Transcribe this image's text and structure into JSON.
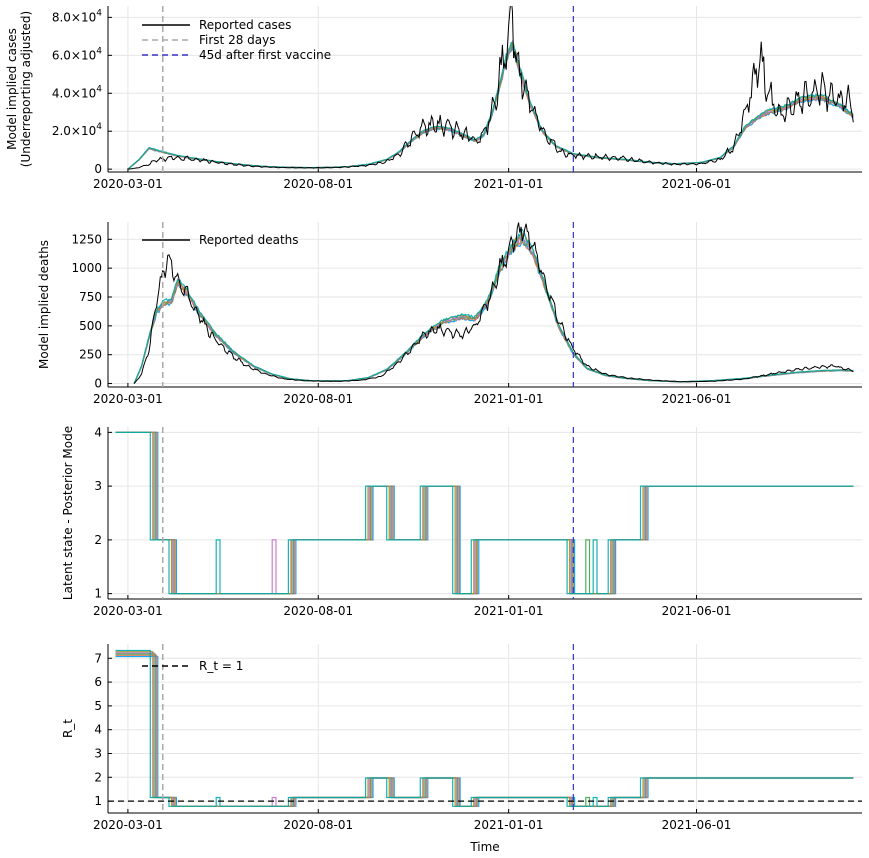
{
  "chart_data": [
    {
      "type": "line",
      "ylabel_lines": [
        "Model implied cases",
        "(Underreporting adjusted)"
      ],
      "xlabel": "",
      "x_ticks": [
        "2020-03-01",
        "2020-08-01",
        "2021-01-01",
        "2021-06-01"
      ],
      "xlim": [
        "2020-02-14",
        "2021-10-12"
      ],
      "ylim": [
        -1500,
        86000
      ],
      "y_ticks": [
        {
          "value": 0,
          "mant": "0",
          "exp": ""
        },
        {
          "value": 20000,
          "mant": "2.0×10",
          "exp": "4"
        },
        {
          "value": 40000,
          "mant": "4.0×10",
          "exp": "4"
        },
        {
          "value": 60000,
          "mant": "6.0×10",
          "exp": "4"
        },
        {
          "value": 80000,
          "mant": "8.0×10",
          "exp": "4"
        }
      ],
      "grid": true,
      "legend_placement": "top-left",
      "legend": [
        "Reported cases",
        "First 28 days",
        "45d after first vaccine"
      ],
      "first_28_days": "2020-03-29",
      "vaccine_line": "2021-02-22",
      "reported": [
        [
          "2020-03-01",
          0
        ],
        [
          "2020-03-08",
          600
        ],
        [
          "2020-03-15",
          1800
        ],
        [
          "2020-03-22",
          4000
        ],
        [
          "2020-03-29",
          5500
        ],
        [
          "2020-04-10",
          6000
        ],
        [
          "2020-04-25",
          5000
        ],
        [
          "2020-05-10",
          3800
        ],
        [
          "2020-05-25",
          2500
        ],
        [
          "2020-06-10",
          1500
        ],
        [
          "2020-06-25",
          1000
        ],
        [
          "2020-07-10",
          800
        ],
        [
          "2020-07-25",
          700
        ],
        [
          "2020-08-10",
          800
        ],
        [
          "2020-08-25",
          1200
        ],
        [
          "2020-09-10",
          2000
        ],
        [
          "2020-09-25",
          4000
        ],
        [
          "2020-10-05",
          8000
        ],
        [
          "2020-10-15",
          16000
        ],
        [
          "2020-10-25",
          22000
        ],
        [
          "2020-11-05",
          24000
        ],
        [
          "2020-11-15",
          22000
        ],
        [
          "2020-11-25",
          20000
        ],
        [
          "2020-12-05",
          15000
        ],
        [
          "2020-12-12",
          18000
        ],
        [
          "2020-12-18",
          30000
        ],
        [
          "2020-12-24",
          45000
        ],
        [
          "2020-12-30",
          68000
        ],
        [
          "2021-01-04",
          82000
        ],
        [
          "2021-01-08",
          55000
        ],
        [
          "2021-01-14",
          42000
        ],
        [
          "2021-01-22",
          28000
        ],
        [
          "2021-02-01",
          17000
        ],
        [
          "2021-02-12",
          9000
        ],
        [
          "2021-02-25",
          7000
        ],
        [
          "2021-03-15",
          6500
        ],
        [
          "2021-04-05",
          5500
        ],
        [
          "2021-04-25",
          3500
        ],
        [
          "2021-05-15",
          2500
        ],
        [
          "2021-06-05",
          3000
        ],
        [
          "2021-06-20",
          5000
        ],
        [
          "2021-07-01",
          12000
        ],
        [
          "2021-07-10",
          30000
        ],
        [
          "2021-07-18",
          48000
        ],
        [
          "2021-07-22",
          60000
        ],
        [
          "2021-07-28",
          42000
        ],
        [
          "2021-08-05",
          28000
        ],
        [
          "2021-08-15",
          32000
        ],
        [
          "2021-08-28",
          38000
        ],
        [
          "2021-09-10",
          42000
        ],
        [
          "2021-09-20",
          35000
        ],
        [
          "2021-09-30",
          38000
        ],
        [
          "2021-10-05",
          30000
        ]
      ],
      "model": [
        [
          "2020-03-01",
          0
        ],
        [
          "2020-03-10",
          5000
        ],
        [
          "2020-03-18",
          11000
        ],
        [
          "2020-03-29",
          9000
        ],
        [
          "2020-04-10",
          7000
        ],
        [
          "2020-04-25",
          5500
        ],
        [
          "2020-05-10",
          4000
        ],
        [
          "2020-05-25",
          2800
        ],
        [
          "2020-06-10",
          1800
        ],
        [
          "2020-06-25",
          1200
        ],
        [
          "2020-07-10",
          900
        ],
        [
          "2020-07-25",
          800
        ],
        [
          "2020-08-10",
          900
        ],
        [
          "2020-08-25",
          1300
        ],
        [
          "2020-09-10",
          2500
        ],
        [
          "2020-09-25",
          5000
        ],
        [
          "2020-10-05",
          9000
        ],
        [
          "2020-10-15",
          15000
        ],
        [
          "2020-10-25",
          20000
        ],
        [
          "2020-11-05",
          22000
        ],
        [
          "2020-11-15",
          21000
        ],
        [
          "2020-11-25",
          18000
        ],
        [
          "2020-12-05",
          15000
        ],
        [
          "2020-12-12",
          18000
        ],
        [
          "2020-12-18",
          28000
        ],
        [
          "2020-12-24",
          42000
        ],
        [
          "2020-12-30",
          58000
        ],
        [
          "2021-01-04",
          66000
        ],
        [
          "2021-01-10",
          52000
        ],
        [
          "2021-01-18",
          35000
        ],
        [
          "2021-01-28",
          20000
        ],
        [
          "2021-02-08",
          12000
        ],
        [
          "2021-02-22",
          8000
        ],
        [
          "2021-03-15",
          6000
        ],
        [
          "2021-04-05",
          5000
        ],
        [
          "2021-04-25",
          3500
        ],
        [
          "2021-05-15",
          2800
        ],
        [
          "2021-06-05",
          3500
        ],
        [
          "2021-06-20",
          6000
        ],
        [
          "2021-07-01",
          12000
        ],
        [
          "2021-07-10",
          22000
        ],
        [
          "2021-07-20",
          27000
        ],
        [
          "2021-07-28",
          30000
        ],
        [
          "2021-08-10",
          32000
        ],
        [
          "2021-08-25",
          37000
        ],
        [
          "2021-09-10",
          38000
        ],
        [
          "2021-09-25",
          33000
        ],
        [
          "2021-10-05",
          28000
        ]
      ]
    },
    {
      "type": "line",
      "ylabel_lines": [
        "Model implied deaths"
      ],
      "xlabel": "",
      "x_ticks": [
        "2020-03-01",
        "2020-08-01",
        "2021-01-01",
        "2021-06-01"
      ],
      "xlim": [
        "2020-02-14",
        "2021-10-12"
      ],
      "ylim": [
        -30,
        1400
      ],
      "y_ticks": [
        {
          "value": 0,
          "mant": "0",
          "exp": ""
        },
        {
          "value": 250,
          "mant": "250",
          "exp": ""
        },
        {
          "value": 500,
          "mant": "500",
          "exp": ""
        },
        {
          "value": 750,
          "mant": "750",
          "exp": ""
        },
        {
          "value": 1000,
          "mant": "1000",
          "exp": ""
        },
        {
          "value": 1250,
          "mant": "1250",
          "exp": ""
        }
      ],
      "grid": true,
      "legend_placement": "top-left",
      "legend": [
        "Reported deaths"
      ],
      "first_28_days": "2020-03-29",
      "vaccine_line": "2021-02-22",
      "reported": [
        [
          "2020-03-06",
          0
        ],
        [
          "2020-03-12",
          80
        ],
        [
          "2020-03-18",
          300
        ],
        [
          "2020-03-24",
          700
        ],
        [
          "2020-03-30",
          1000
        ],
        [
          "2020-04-02",
          1070
        ],
        [
          "2020-04-07",
          950
        ],
        [
          "2020-04-15",
          820
        ],
        [
          "2020-04-25",
          620
        ],
        [
          "2020-05-05",
          450
        ],
        [
          "2020-05-15",
          330
        ],
        [
          "2020-05-25",
          230
        ],
        [
          "2020-06-05",
          150
        ],
        [
          "2020-06-20",
          80
        ],
        [
          "2020-07-05",
          40
        ],
        [
          "2020-07-20",
          25
        ],
        [
          "2020-08-05",
          20
        ],
        [
          "2020-08-20",
          20
        ],
        [
          "2020-09-05",
          30
        ],
        [
          "2020-09-20",
          60
        ],
        [
          "2020-10-01",
          150
        ],
        [
          "2020-10-15",
          300
        ],
        [
          "2020-10-25",
          420
        ],
        [
          "2020-11-05",
          480
        ],
        [
          "2020-11-15",
          440
        ],
        [
          "2020-11-25",
          430
        ],
        [
          "2020-12-05",
          500
        ],
        [
          "2020-12-15",
          700
        ],
        [
          "2020-12-25",
          1000
        ],
        [
          "2021-01-05",
          1250
        ],
        [
          "2021-01-12",
          1350
        ],
        [
          "2021-01-20",
          1200
        ],
        [
          "2021-01-30",
          900
        ],
        [
          "2021-02-10",
          550
        ],
        [
          "2021-02-22",
          300
        ],
        [
          "2021-03-05",
          150
        ],
        [
          "2021-03-20",
          80
        ],
        [
          "2021-04-05",
          50
        ],
        [
          "2021-04-25",
          30
        ],
        [
          "2021-05-20",
          15
        ],
        [
          "2021-06-15",
          20
        ],
        [
          "2021-07-10",
          40
        ],
        [
          "2021-07-30",
          80
        ],
        [
          "2021-08-20",
          120
        ],
        [
          "2021-09-05",
          140
        ],
        [
          "2021-09-20",
          150
        ],
        [
          "2021-10-05",
          110
        ]
      ],
      "model": [
        [
          "2020-03-06",
          0
        ],
        [
          "2020-03-12",
          150
        ],
        [
          "2020-03-18",
          400
        ],
        [
          "2020-03-24",
          620
        ],
        [
          "2020-03-30",
          700
        ],
        [
          "2020-04-05",
          710
        ],
        [
          "2020-04-10",
          880
        ],
        [
          "2020-04-18",
          780
        ],
        [
          "2020-04-28",
          600
        ],
        [
          "2020-05-10",
          430
        ],
        [
          "2020-05-25",
          270
        ],
        [
          "2020-06-10",
          150
        ],
        [
          "2020-06-25",
          80
        ],
        [
          "2020-07-10",
          40
        ],
        [
          "2020-07-25",
          25
        ],
        [
          "2020-08-10",
          22
        ],
        [
          "2020-08-25",
          25
        ],
        [
          "2020-09-10",
          50
        ],
        [
          "2020-09-25",
          120
        ],
        [
          "2020-10-10",
          260
        ],
        [
          "2020-10-25",
          420
        ],
        [
          "2020-11-10",
          540
        ],
        [
          "2020-11-25",
          580
        ],
        [
          "2020-12-05",
          560
        ],
        [
          "2020-12-15",
          700
        ],
        [
          "2020-12-25",
          1000
        ],
        [
          "2021-01-05",
          1200
        ],
        [
          "2021-01-12",
          1270
        ],
        [
          "2021-01-20",
          1150
        ],
        [
          "2021-01-30",
          850
        ],
        [
          "2021-02-10",
          500
        ],
        [
          "2021-02-22",
          260
        ],
        [
          "2021-03-05",
          130
        ],
        [
          "2021-03-20",
          70
        ],
        [
          "2021-04-05",
          45
        ],
        [
          "2021-04-25",
          25
        ],
        [
          "2021-05-20",
          15
        ],
        [
          "2021-06-15",
          25
        ],
        [
          "2021-07-10",
          45
        ],
        [
          "2021-07-30",
          70
        ],
        [
          "2021-08-20",
          95
        ],
        [
          "2021-09-10",
          110
        ],
        [
          "2021-09-25",
          115
        ],
        [
          "2021-10-05",
          110
        ]
      ]
    },
    {
      "type": "line",
      "ylabel_lines": [
        "Latent state - Posterior Mode"
      ],
      "xlabel": "",
      "x_ticks": [
        "2020-03-01",
        "2020-08-01",
        "2021-01-01",
        "2021-06-01"
      ],
      "xlim": [
        "2020-02-14",
        "2021-10-12"
      ],
      "ylim": [
        0.9,
        4.1
      ],
      "y_ticks": [
        {
          "value": 1,
          "mant": "1",
          "exp": ""
        },
        {
          "value": 2,
          "mant": "2",
          "exp": ""
        },
        {
          "value": 3,
          "mant": "3",
          "exp": ""
        },
        {
          "value": 4,
          "mant": "4",
          "exp": ""
        }
      ],
      "grid": true,
      "legend": [],
      "first_28_days": "2020-03-29",
      "vaccine_line": "2021-02-22",
      "segments": [
        [
          "2020-02-20",
          4
        ],
        [
          "2020-03-22",
          2
        ],
        [
          "2020-04-06",
          1
        ],
        [
          "2020-07-11",
          2
        ],
        [
          "2020-08-21",
          2
        ],
        [
          "2020-09-11",
          3
        ],
        [
          "2020-09-28",
          2
        ],
        [
          "2020-10-25",
          3
        ],
        [
          "2020-11-20",
          1
        ],
        [
          "2020-12-05",
          2
        ],
        [
          "2021-02-20",
          1
        ],
        [
          "2021-03-25",
          2
        ],
        [
          "2021-04-20",
          3
        ],
        [
          "2021-10-05",
          3
        ]
      ],
      "model_values": "state"
    },
    {
      "type": "line",
      "ylabel_lines": [
        "R_t"
      ],
      "xlabel": "Time",
      "x_ticks": [
        "2020-03-01",
        "2020-08-01",
        "2021-01-01",
        "2021-06-01"
      ],
      "xlim": [
        "2020-02-14",
        "2021-10-12"
      ],
      "ylim": [
        0.5,
        7.6
      ],
      "y_ticks": [
        {
          "value": 1,
          "mant": "1",
          "exp": ""
        },
        {
          "value": 2,
          "mant": "2",
          "exp": ""
        },
        {
          "value": 3,
          "mant": "3",
          "exp": ""
        },
        {
          "value": 4,
          "mant": "4",
          "exp": ""
        },
        {
          "value": 5,
          "mant": "5",
          "exp": ""
        },
        {
          "value": 6,
          "mant": "6",
          "exp": ""
        },
        {
          "value": 7,
          "mant": "7",
          "exp": ""
        }
      ],
      "grid": true,
      "legend_placement": "top-left",
      "legend": [
        "R_t = 1"
      ],
      "first_28_days": "2020-03-29",
      "vaccine_line": "2021-02-22",
      "reference_line": 1,
      "state_values": {
        "1": 0.78,
        "2": 1.15,
        "3": 1.97,
        "4": 7.2
      },
      "segments": [
        [
          "2020-02-20",
          4
        ],
        [
          "2020-03-22",
          2
        ],
        [
          "2020-04-06",
          1
        ],
        [
          "2020-07-11",
          2
        ],
        [
          "2020-08-21",
          2
        ],
        [
          "2020-09-11",
          3
        ],
        [
          "2020-09-28",
          2
        ],
        [
          "2020-10-25",
          3
        ],
        [
          "2020-11-20",
          1
        ],
        [
          "2020-12-05",
          2
        ],
        [
          "2021-02-20",
          1
        ],
        [
          "2021-03-25",
          2
        ],
        [
          "2021-04-20",
          3
        ],
        [
          "2021-10-05",
          3
        ]
      ]
    }
  ],
  "colors": {
    "reported": "#000000",
    "first_28_days": "#aaaaaa",
    "vaccine": "#3333cc",
    "chains": [
      "#009afa",
      "#e36f47",
      "#3ea44e",
      "#c371d2",
      "#ac8e18",
      "#00aaae"
    ],
    "reference": "#000000"
  }
}
